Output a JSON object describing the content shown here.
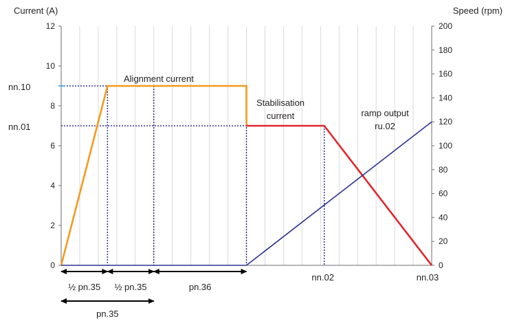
{
  "chart_data": {
    "type": "line",
    "title": "",
    "ylabel_left": "Current (A)",
    "ylabel_right": "Speed (rpm)",
    "xlabel": "",
    "ylim_left": [
      0,
      12
    ],
    "ylim_right": [
      0,
      200
    ],
    "yticks_left": [
      "0",
      "2",
      "4",
      "6",
      "8",
      "10",
      "12"
    ],
    "yticks_right": [
      "0",
      "20",
      "40",
      "60",
      "80",
      "100",
      "120",
      "140",
      "160",
      "180",
      "200"
    ],
    "x_domain": [
      0,
      100
    ],
    "grid": "vertical",
    "series": [
      {
        "name": "Alignment current",
        "axis": "left",
        "color": "#f39a1e",
        "points": [
          [
            0,
            0
          ],
          [
            12.5,
            9
          ],
          [
            50,
            9
          ],
          [
            50,
            7
          ]
        ]
      },
      {
        "name": "Stabilisation current",
        "axis": "left",
        "color": "#e2262b",
        "points": [
          [
            50,
            7
          ],
          [
            71,
            7
          ],
          [
            100,
            0
          ]
        ]
      },
      {
        "name": "ramp output ru.02",
        "axis": "right",
        "color": "#2e3192",
        "points": [
          [
            0,
            0
          ],
          [
            50,
            0
          ],
          [
            100,
            120
          ]
        ]
      }
    ],
    "annotations": {
      "alignment": "Alignment current",
      "stabilisation_line1": "Stabilisation",
      "stabilisation_line2": "current",
      "ramp_line1": "ramp output",
      "ramp_line2": "ru.02"
    },
    "level_markers": [
      {
        "label": "nn.10",
        "value": 9
      },
      {
        "label": "nn.01",
        "value": 7
      }
    ],
    "x_markers": [
      {
        "label": "nn.02",
        "x": 71
      },
      {
        "label": "nn.03",
        "x": 100
      }
    ],
    "intervals": [
      {
        "label": "½ pn.35",
        "from": 0,
        "to": 12.5,
        "row": 1
      },
      {
        "label": "½ pn.35",
        "from": 12.5,
        "to": 25,
        "row": 1
      },
      {
        "label": "pn.36",
        "from": 25,
        "to": 50,
        "row": 1
      },
      {
        "label": "pn.35",
        "from": 0,
        "to": 25,
        "row": 2
      }
    ],
    "colors": {
      "alignment": "#f39a1e",
      "stabilisation": "#e2262b",
      "ramp": "#2e3192",
      "dotted_guides": "#2e3192",
      "grid": "#d9d9d9",
      "axis": "#6d6e71"
    }
  }
}
